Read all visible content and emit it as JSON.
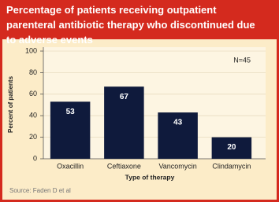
{
  "chart_data": {
    "type": "bar",
    "title": "Percentage of patients receiving outpatient parenteral antibiotic therapy who discontinued due to adverse events",
    "categories": [
      "Oxacillin",
      "Ceftiaxone",
      "Vancomycin",
      "Clindamycin"
    ],
    "values": [
      53,
      67,
      43,
      20
    ],
    "color": "#0f1a3c",
    "ylim": [
      0,
      100
    ],
    "yticks": [
      0,
      20,
      40,
      60,
      80,
      100
    ],
    "grid": true,
    "y_label": "Percent of patients",
    "x_label": "Type of therapy",
    "annotation": "N=45",
    "source": "Source:  Faden D et al"
  }
}
